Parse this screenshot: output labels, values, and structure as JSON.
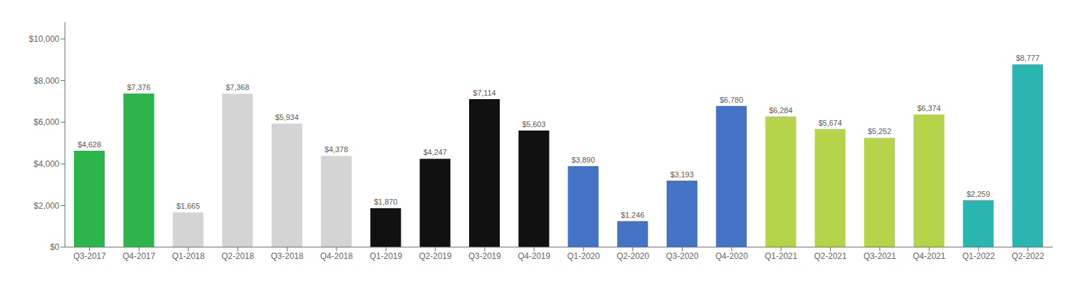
{
  "chart_data": {
    "type": "bar",
    "categories": [
      "Q3-2017",
      "Q4-2017",
      "Q1-2018",
      "Q2-2018",
      "Q3-2018",
      "Q4-2018",
      "Q1-2019",
      "Q2-2019",
      "Q3-2019",
      "Q4-2019",
      "Q1-2020",
      "Q2-2020",
      "Q3-2020",
      "Q4-2020",
      "Q1-2021",
      "Q2-2021",
      "Q3-2021",
      "Q4-2021",
      "Q1-2022",
      "Q2-2022"
    ],
    "values": [
      4628,
      7376,
      1665,
      7368,
      5934,
      4378,
      1870,
      4247,
      7114,
      5603,
      3890,
      1246,
      3193,
      6780,
      6284,
      5674,
      5252,
      6374,
      2259,
      8777
    ],
    "value_labels": [
      "$4,628",
      "$7,376",
      "$1,665",
      "$7,368",
      "$5,934",
      "$4,378",
      "$1,870",
      "$4,247",
      "$7,114",
      "$5,603",
      "$3,890",
      "$1,246",
      "$3,193",
      "$6,780",
      "$6,284",
      "$5,674",
      "$5,252",
      "$6,374",
      "$2,259",
      "$8,777"
    ],
    "colors": [
      "#2db54b",
      "#2db54b",
      "#d4d4d4",
      "#d4d4d4",
      "#d4d4d4",
      "#d4d4d4",
      "#111111",
      "#111111",
      "#111111",
      "#111111",
      "#4472c4",
      "#4472c4",
      "#4472c4",
      "#4472c4",
      "#b5d44a",
      "#b5d44a",
      "#b5d44a",
      "#b5d44a",
      "#2ab5b0",
      "#2ab5b0"
    ],
    "ylim": [
      0,
      10800
    ],
    "yticks": [
      {
        "value": 0,
        "label": "$0"
      },
      {
        "value": 2000,
        "label": "$2,000"
      },
      {
        "value": 4000,
        "label": "$4,000"
      },
      {
        "value": 6000,
        "label": "$6,000"
      },
      {
        "value": 8000,
        "label": "$8,000"
      },
      {
        "value": 10000,
        "label": "$10,000"
      }
    ],
    "grid": false,
    "data_labels": true
  }
}
